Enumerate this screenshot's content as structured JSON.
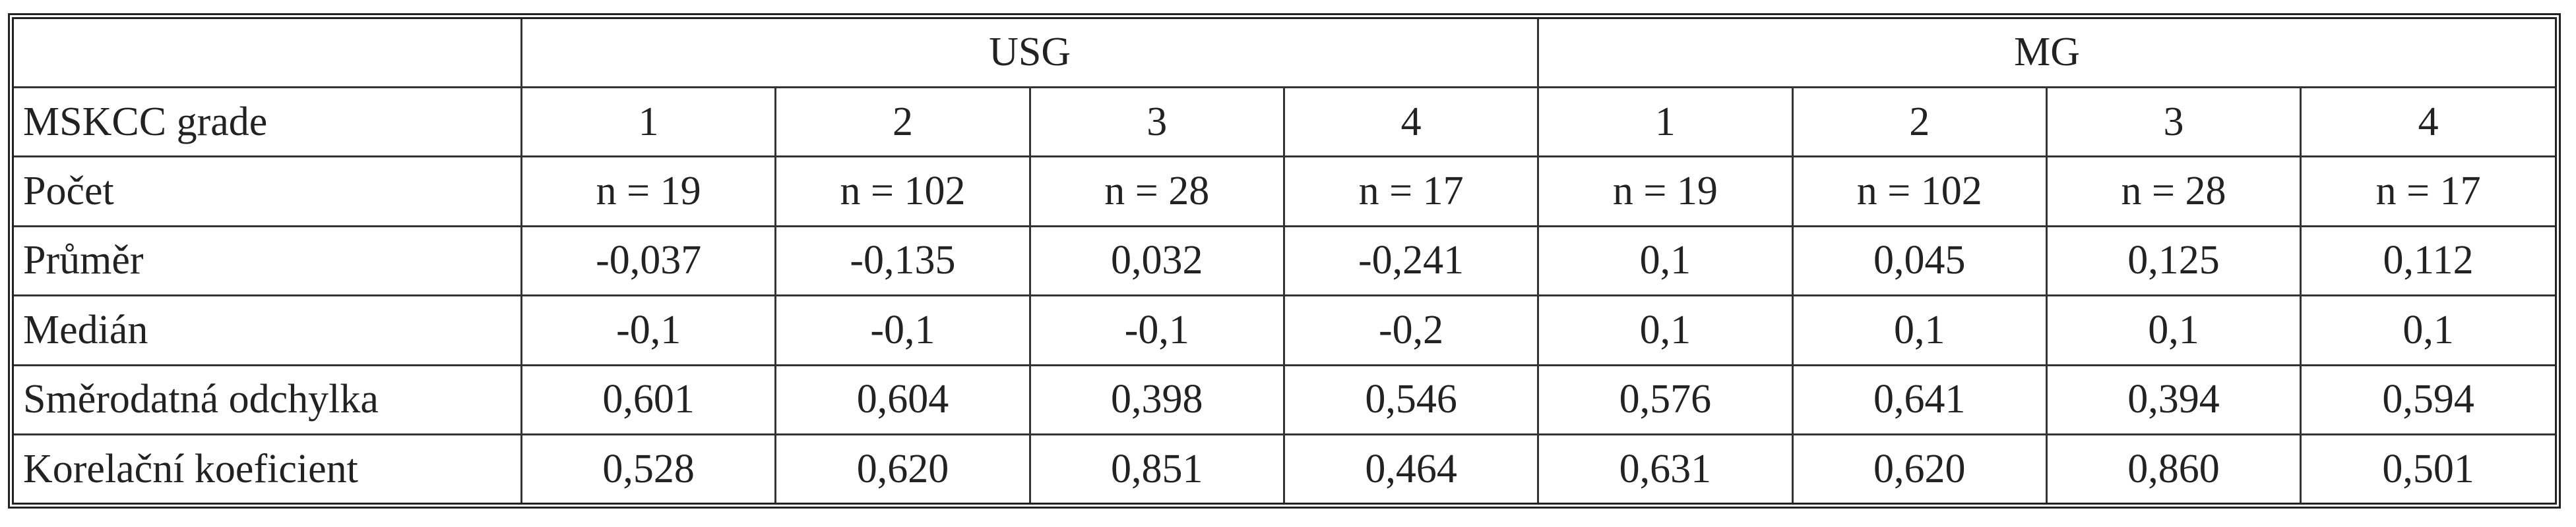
{
  "table": {
    "groups": [
      "USG",
      "MG"
    ],
    "rows": [
      [
        "MSKCC grade",
        "1",
        "2",
        "3",
        "4",
        "1",
        "2",
        "3",
        "4"
      ],
      [
        "Počet",
        "n = 19",
        "n = 102",
        "n = 28",
        "n = 17",
        "n = 19",
        "n = 102",
        "n = 28",
        "n = 17"
      ],
      [
        "Průměr",
        "-0,037",
        "-0,135",
        "0,032",
        "-0,241",
        "0,1",
        "0,045",
        "0,125",
        "0,112"
      ],
      [
        "Medián",
        "-0,1",
        "-0,1",
        "-0,1",
        "-0,2",
        "0,1",
        "0,1",
        "0,1",
        "0,1"
      ],
      [
        "Směrodatná odchylka",
        "0,601",
        "0,604",
        "0,398",
        "0,546",
        "0,576",
        "0,641",
        "0,394",
        "0,594"
      ],
      [
        "Korelační koeficient",
        "0,528",
        "0,620",
        "0,851",
        "0,464",
        "0,631",
        "0,620",
        "0,860",
        "0,501"
      ]
    ]
  }
}
